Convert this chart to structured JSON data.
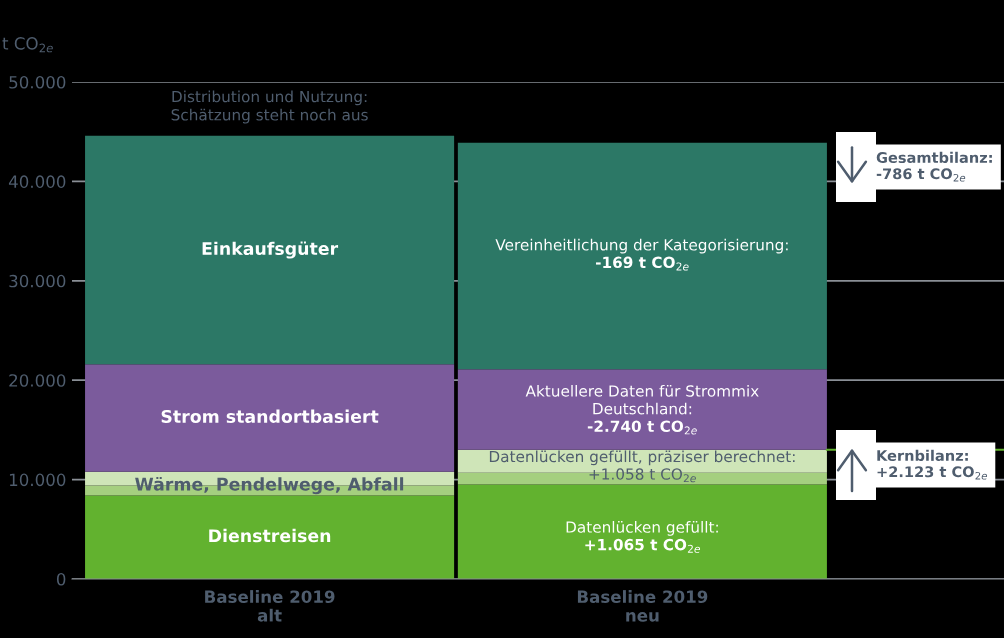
{
  "chart_data": {
    "type": "bar",
    "stacked": true,
    "ylabel": "t CO$_{2e}$",
    "categories": [
      "Baseline 2019\nalt",
      "Baseline 2019\nneu"
    ],
    "series": [
      {
        "name": "Dienstreisen",
        "color": "#62b22f",
        "values": [
          8400,
          9500
        ]
      },
      {
        "name": "Wärme, Pendelwege, Abfall",
        "color": "#a5cf7f",
        "values": [
          1000,
          1200
        ]
      },
      {
        "color": "#cfe5b8",
        "values": [
          1400,
          2300
        ]
      },
      {
        "name": "Strom standortbasiert",
        "color": "#7b5b9c",
        "values": [
          10800,
          8100
        ]
      },
      {
        "name": "Einkaufsgüter",
        "color": "#2c7866",
        "values": [
          23000,
          22800
        ]
      }
    ],
    "ylim": [
      0,
      50000
    ],
    "yticks": [
      0,
      {
        "value": 10000,
        "label": "10.000"
      },
      {
        "value": 20000,
        "label": "20.000"
      },
      {
        "value": 30000,
        "label": "30.000"
      },
      {
        "value": 40000,
        "label": "40.000"
      },
      {
        "value": 50000,
        "label": "50.000"
      }
    ],
    "grid": "y",
    "ref_lines": [
      {
        "axis": "y",
        "value": 13000,
        "color": "#62b22f"
      }
    ],
    "annotations": [
      "Distribution und Nutzung:\nSchätzung steht noch aus",
      "Vereinheitlichung der Kategorisierung:\n-169 t CO$_{2e}$",
      "Aktuellere Daten für Strommix\nDeutschland:\n-2.740 t CO$_{2e}$",
      "Datenlücken gefüllt, präziser berechnet:\n+1.058 t CO$_{2e}$",
      "Datenlücken gefüllt:\n+1.065 t CO$_{2e}$",
      "Gesamtbilanz:\n-786 t CO$_{2e}$",
      "Kernbilanz:\n+2.123 t CO$_{2e}$"
    ]
  }
}
